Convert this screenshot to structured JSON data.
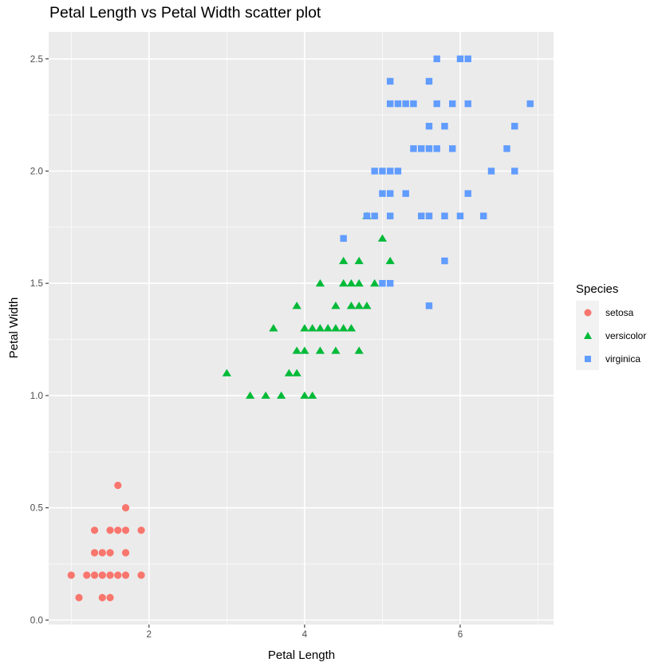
{
  "chart_data": {
    "type": "scatter",
    "title": "Petal Length vs Petal Width scatter plot",
    "xlabel": "Petal Length",
    "ylabel": "Petal Width",
    "xlim": [
      0.71,
      7.2
    ],
    "ylim": [
      -0.02,
      2.62
    ],
    "x_ticks": [
      2,
      4,
      6
    ],
    "x_tick_labels": [
      "2",
      "4",
      "6"
    ],
    "y_ticks": [
      0.0,
      0.5,
      1.0,
      1.5,
      2.0,
      2.5
    ],
    "y_tick_labels": [
      "0.0",
      "0.5",
      "1.0",
      "1.5",
      "2.0",
      "2.5"
    ],
    "grid": true,
    "panel_background": "#ebebeb",
    "legend": {
      "title": "Species",
      "position": "right"
    },
    "series": [
      {
        "name": "setosa",
        "color": "#f8766d",
        "shape": "circle",
        "points": [
          [
            1.0,
            0.2
          ],
          [
            1.2,
            0.2
          ],
          [
            1.3,
            0.2
          ],
          [
            1.4,
            0.2
          ],
          [
            1.5,
            0.2
          ],
          [
            1.6,
            0.2
          ],
          [
            1.7,
            0.2
          ],
          [
            1.9,
            0.2
          ],
          [
            1.1,
            0.1
          ],
          [
            1.4,
            0.1
          ],
          [
            1.5,
            0.1
          ],
          [
            1.3,
            0.3
          ],
          [
            1.4,
            0.3
          ],
          [
            1.5,
            0.3
          ],
          [
            1.7,
            0.3
          ],
          [
            1.3,
            0.4
          ],
          [
            1.5,
            0.4
          ],
          [
            1.6,
            0.4
          ],
          [
            1.7,
            0.4
          ],
          [
            1.9,
            0.4
          ],
          [
            1.7,
            0.5
          ],
          [
            1.6,
            0.6
          ]
        ]
      },
      {
        "name": "versicolor",
        "color": "#00ba38",
        "shape": "triangle",
        "points": [
          [
            3.3,
            1.0
          ],
          [
            3.5,
            1.0
          ],
          [
            3.7,
            1.0
          ],
          [
            4.0,
            1.0
          ],
          [
            4.1,
            1.0
          ],
          [
            3.0,
            1.1
          ],
          [
            3.8,
            1.1
          ],
          [
            3.9,
            1.1
          ],
          [
            3.9,
            1.2
          ],
          [
            4.0,
            1.2
          ],
          [
            4.2,
            1.2
          ],
          [
            4.4,
            1.2
          ],
          [
            4.7,
            1.2
          ],
          [
            3.6,
            1.3
          ],
          [
            4.0,
            1.3
          ],
          [
            4.1,
            1.3
          ],
          [
            4.2,
            1.3
          ],
          [
            4.3,
            1.3
          ],
          [
            4.4,
            1.3
          ],
          [
            4.5,
            1.3
          ],
          [
            4.6,
            1.3
          ],
          [
            3.9,
            1.4
          ],
          [
            4.4,
            1.4
          ],
          [
            4.6,
            1.4
          ],
          [
            4.7,
            1.4
          ],
          [
            4.8,
            1.4
          ],
          [
            4.2,
            1.5
          ],
          [
            4.5,
            1.5
          ],
          [
            4.6,
            1.5
          ],
          [
            4.7,
            1.5
          ],
          [
            4.9,
            1.5
          ],
          [
            4.5,
            1.6
          ],
          [
            4.7,
            1.6
          ],
          [
            5.1,
            1.6
          ],
          [
            5.0,
            1.7
          ],
          [
            4.8,
            1.8
          ]
        ]
      },
      {
        "name": "virginica",
        "color": "#619cff",
        "shape": "square",
        "points": [
          [
            5.6,
            1.4
          ],
          [
            5.0,
            1.5
          ],
          [
            5.1,
            1.5
          ],
          [
            5.8,
            1.6
          ],
          [
            4.5,
            1.7
          ],
          [
            4.8,
            1.8
          ],
          [
            4.9,
            1.8
          ],
          [
            5.1,
            1.8
          ],
          [
            5.5,
            1.8
          ],
          [
            5.6,
            1.8
          ],
          [
            5.8,
            1.8
          ],
          [
            6.0,
            1.8
          ],
          [
            6.3,
            1.8
          ],
          [
            5.0,
            1.9
          ],
          [
            5.1,
            1.9
          ],
          [
            5.3,
            1.9
          ],
          [
            6.1,
            1.9
          ],
          [
            4.9,
            2.0
          ],
          [
            5.0,
            2.0
          ],
          [
            5.1,
            2.0
          ],
          [
            5.2,
            2.0
          ],
          [
            6.4,
            2.0
          ],
          [
            6.7,
            2.0
          ],
          [
            5.4,
            2.1
          ],
          [
            5.5,
            2.1
          ],
          [
            5.6,
            2.1
          ],
          [
            5.7,
            2.1
          ],
          [
            5.9,
            2.1
          ],
          [
            6.6,
            2.1
          ],
          [
            5.6,
            2.2
          ],
          [
            5.8,
            2.2
          ],
          [
            6.7,
            2.2
          ],
          [
            5.1,
            2.3
          ],
          [
            5.2,
            2.3
          ],
          [
            5.3,
            2.3
          ],
          [
            5.4,
            2.3
          ],
          [
            5.7,
            2.3
          ],
          [
            5.9,
            2.3
          ],
          [
            6.1,
            2.3
          ],
          [
            6.9,
            2.3
          ],
          [
            5.1,
            2.4
          ],
          [
            5.6,
            2.4
          ],
          [
            5.7,
            2.5
          ],
          [
            6.0,
            2.5
          ],
          [
            6.1,
            2.5
          ]
        ]
      }
    ]
  }
}
